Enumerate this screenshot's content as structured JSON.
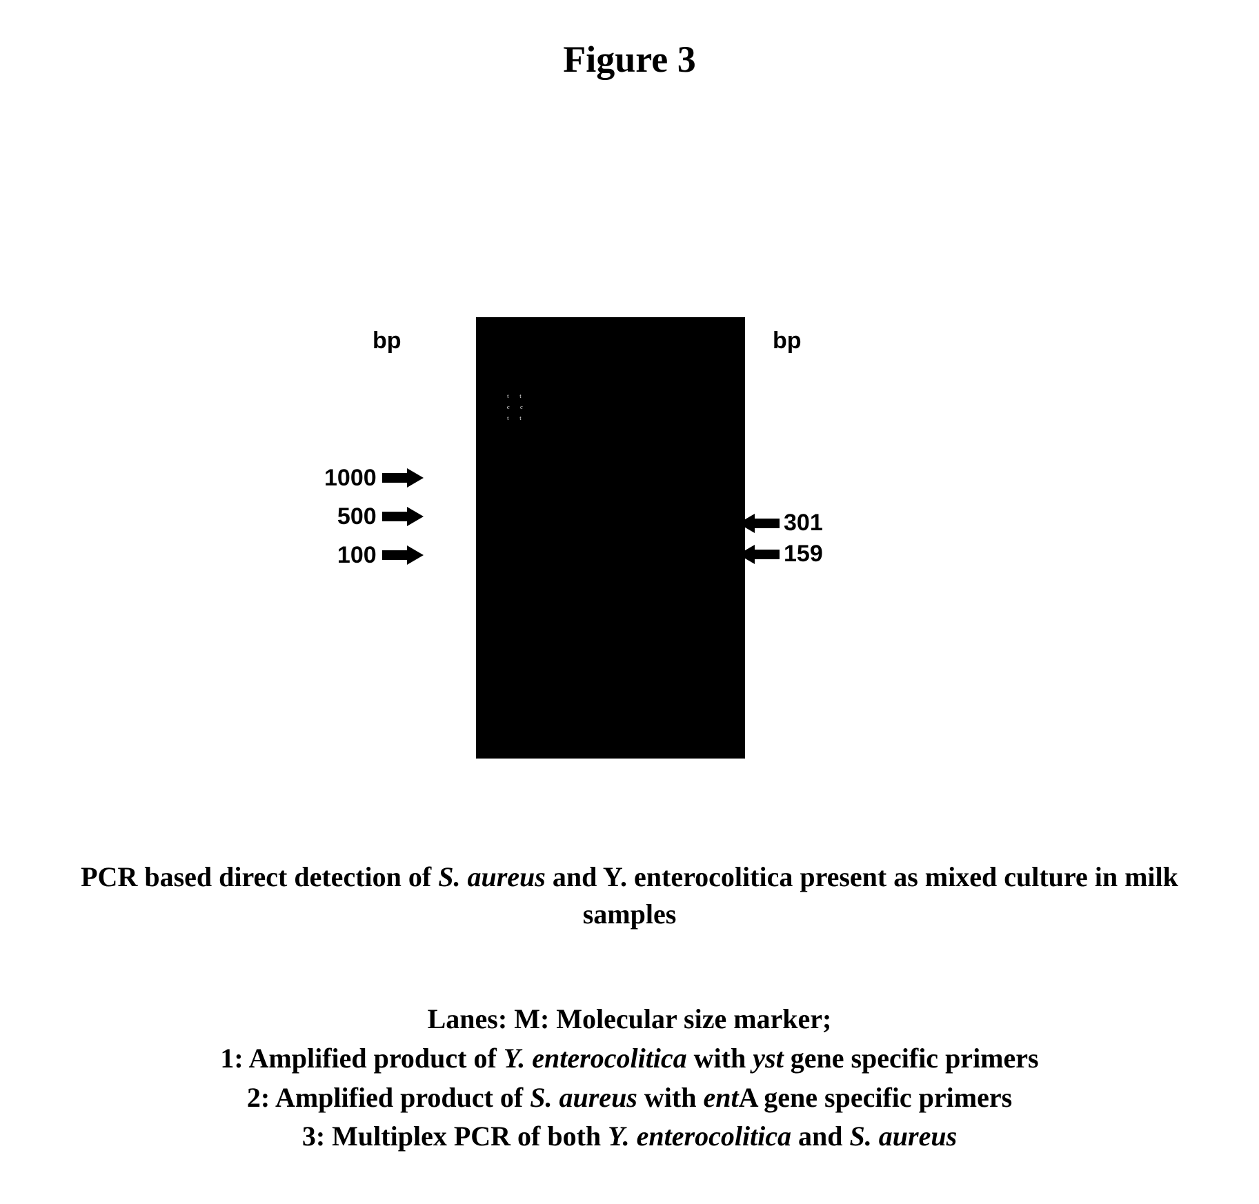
{
  "figure": {
    "title": "Figure 3",
    "title_fontsize": 54,
    "font_family_title": "Times New Roman",
    "font_family_labels": "Arial"
  },
  "gel": {
    "background_color": "#000000",
    "page_background": "#ffffff",
    "bp_label_left": "bp",
    "bp_label_right": "bp",
    "left_markers": {
      "v1": "1000",
      "v2": "500",
      "v3": "100"
    },
    "right_markers": {
      "v1": "301",
      "v2": "159"
    },
    "label_fontsize": 34,
    "label_fontweight": "bold",
    "arrow_color": "#000000"
  },
  "caption": {
    "main_prefix": "PCR based direct detection of ",
    "main_it1": "S. aureus",
    "main_mid": "  and Y. enterocolitica present as mixed culture in milk samples",
    "main_fontsize": 40,
    "main_fontweight": "bold",
    "lanes_l0": "Lanes: M: Molecular size marker;",
    "lanes_l1a": "1: Amplified product of ",
    "lanes_l1b": "Y. enterocolitica",
    "lanes_l1c": " with ",
    "lanes_l1d": "yst",
    "lanes_l1e": " gene specific primers",
    "lanes_l2a": "2: Amplified product of ",
    "lanes_l2b": "S. aureus",
    "lanes_l2c": " with ",
    "lanes_l2d": "ent",
    "lanes_l2e": "A gene specific primers",
    "lanes_l3a": "3: Multiplex PCR of both ",
    "lanes_l3b": "Y. enterocolitica",
    "lanes_l3c": " and ",
    "lanes_l3d": "S. aureus"
  }
}
